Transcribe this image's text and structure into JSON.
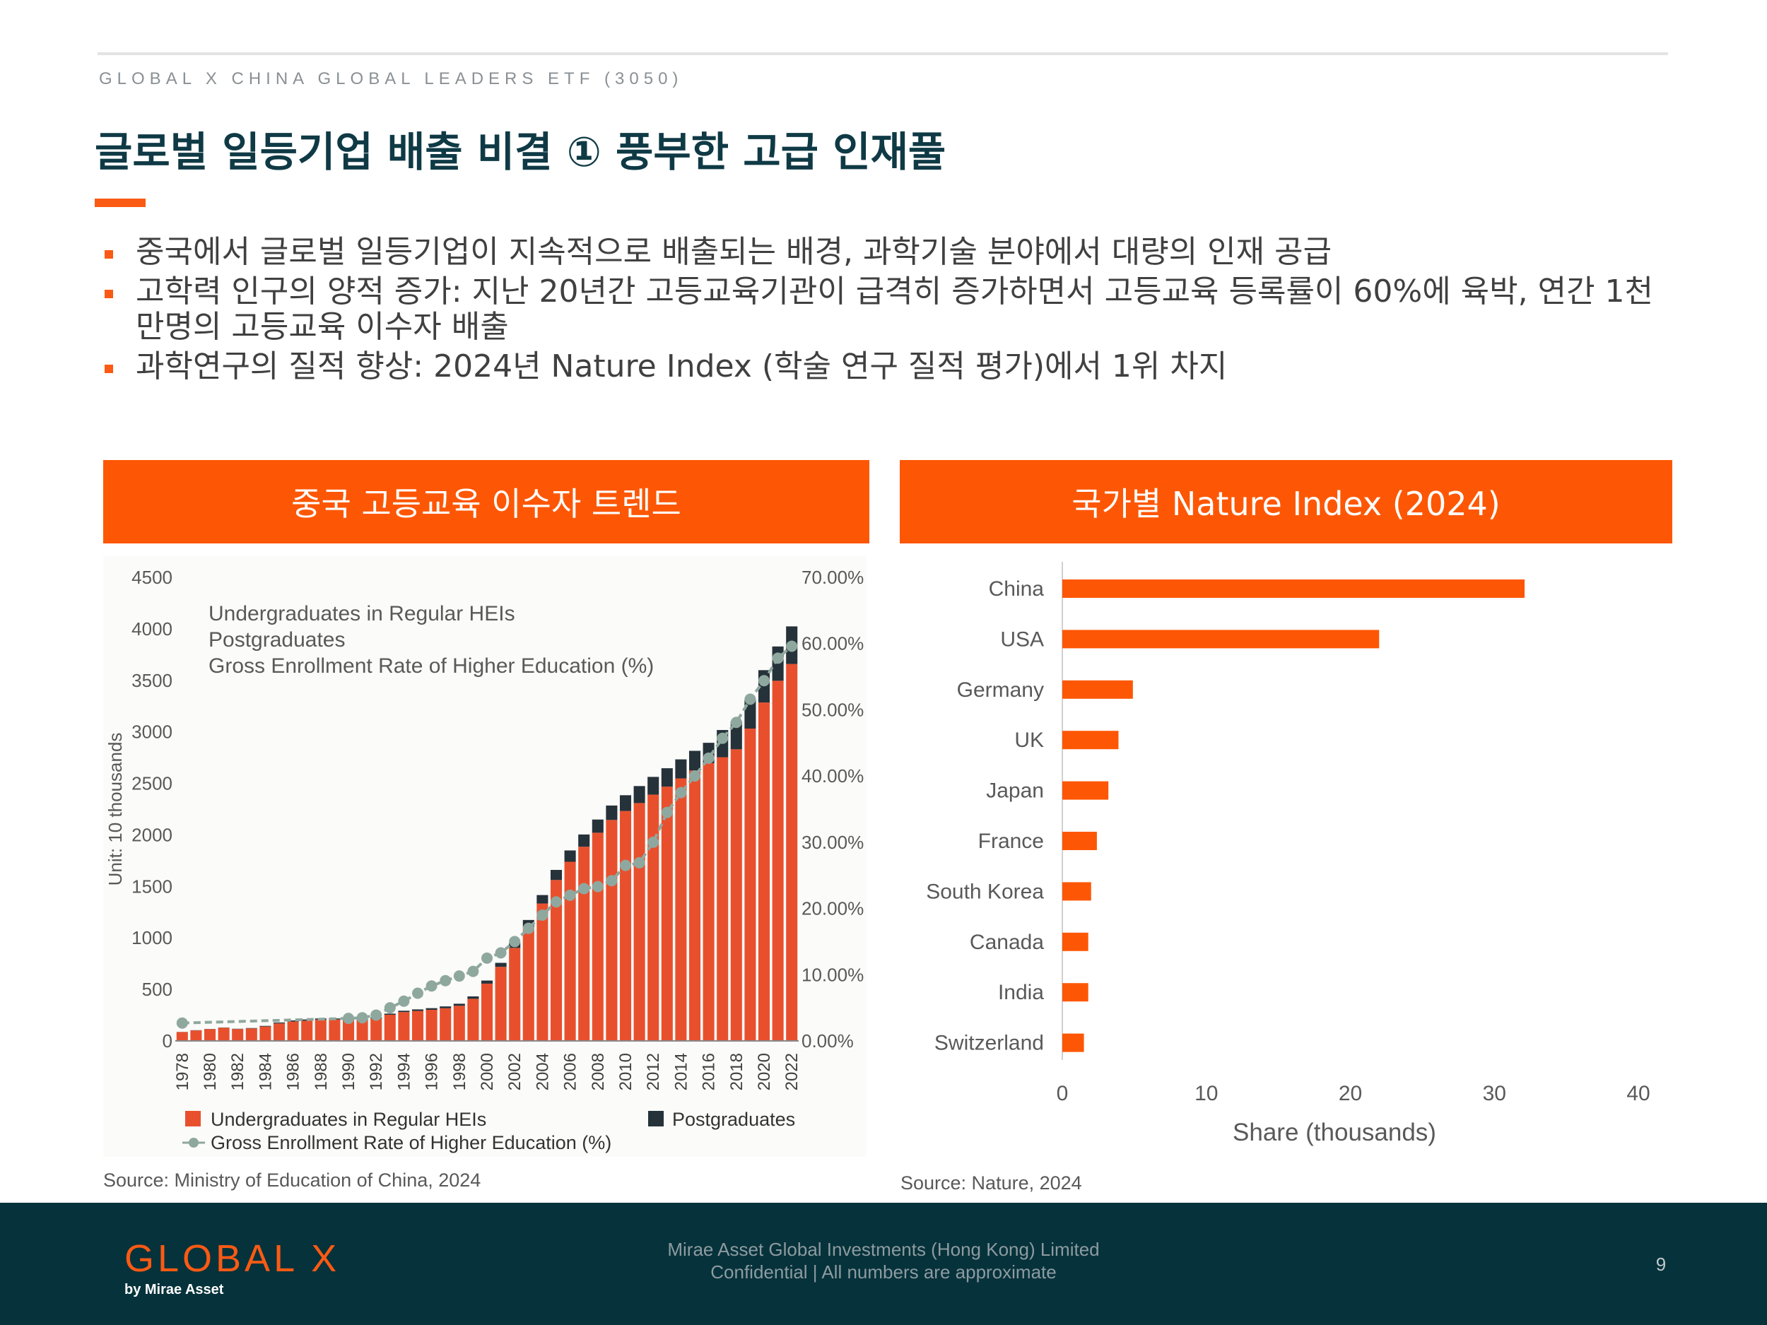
{
  "header": {
    "eyebrow": "GLOBAL X CHINA GLOBAL LEADERS ETF (3050)",
    "title": "글로벌 일등기업 배출 비결 ① 풍부한 고급 인재풀"
  },
  "bullets": [
    "중국에서 글로벌 일등기업이 지속적으로 배출되는 배경, 과학기술 분야에서 대량의 인재 공급",
    "고학력 인구의 양적 증가: 지난 20년간 고등교육기관이 급격히 증가하면서 고등교육 등록률이 60%에 육박, 연간 1천만명의 고등교육 이수자 배출",
    "과학연구의 질적 향상: 2024년 Nature Index (학술 연구 질적 평가)에서 1위 차지"
  ],
  "left_panel": {
    "heading": "중국 고등교육 이수자 트렌드",
    "source": "Source: Ministry of Education of China, 2024"
  },
  "right_panel": {
    "heading": "국가별 Nature Index (2024)",
    "source": "Source: Nature, 2024"
  },
  "footer": {
    "logo": "GLOBAL X",
    "logo_sub": "by Mirae Asset",
    "line1": "Mirae Asset Global Investments (Hong Kong) Limited",
    "line2": "Confidential | All numbers are approximate",
    "page": "9"
  },
  "colors": {
    "accent": "#fa5a14",
    "header_bar": "#fd5705",
    "undergrad": "#e8502d",
    "postgrad": "#26323a",
    "rate_line": "#8fa89f",
    "footer_bg": "#06323b",
    "title": "#0f3a45"
  },
  "chart_data": [
    {
      "type": "bar",
      "stacked": true,
      "secondary_line": true,
      "ylabel": "Unit: 10 thousands",
      "ylim": [
        0,
        4500
      ],
      "yticks": [
        "0",
        "500",
        "1000",
        "1500",
        "2000",
        "2500",
        "3000",
        "3500",
        "4000",
        "4500"
      ],
      "y2lim": [
        0,
        70
      ],
      "y2ticks": [
        "0.00%",
        "10.00%",
        "20.00%",
        "30.00%",
        "40.00%",
        "50.00%",
        "60.00%",
        "70.00%"
      ],
      "xticks": [
        "1978",
        "1980",
        "1982",
        "1984",
        "1986",
        "1988",
        "1990",
        "1992",
        "1994",
        "1996",
        "1998",
        "2000",
        "2002",
        "2004",
        "2006",
        "2008",
        "2010",
        "2012",
        "2014",
        "2016",
        "2018",
        "2020",
        "2022"
      ],
      "x": [
        1978,
        1979,
        1980,
        1981,
        1982,
        1983,
        1984,
        1985,
        1986,
        1987,
        1988,
        1989,
        1990,
        1991,
        1992,
        1993,
        1994,
        1995,
        1996,
        1997,
        1998,
        1999,
        2000,
        2001,
        2002,
        2003,
        2004,
        2005,
        2006,
        2007,
        2008,
        2009,
        2010,
        2011,
        2012,
        2013,
        2014,
        2015,
        2016,
        2017,
        2018,
        2019,
        2020,
        2021,
        2022
      ],
      "legend_labels": [
        "Undergraduates in Regular HEIs",
        "Postgraduates",
        "Gross Enrollment Rate of Higher Education (%)"
      ],
      "legend_placement": "top-left and bottom",
      "series": [
        {
          "name": "Undergraduates in Regular HEIs",
          "type": "bar",
          "values": [
            86,
            102,
            114,
            128,
            115,
            121,
            140,
            170,
            188,
            196,
            207,
            208,
            206,
            204,
            218,
            254,
            280,
            291,
            302,
            317,
            341,
            409,
            556,
            719,
            903,
            1109,
            1334,
            1562,
            1739,
            1885,
            2021,
            2145,
            2232,
            2309,
            2391,
            2468,
            2548,
            2625,
            2696,
            2754,
            2831,
            3032,
            3285,
            3496,
            3659
          ]
        },
        {
          "name": "Postgraduates",
          "type": "bar",
          "values": [
            1,
            2,
            2,
            2,
            3,
            4,
            6,
            9,
            11,
            12,
            11,
            10,
            9,
            9,
            9,
            11,
            13,
            15,
            16,
            18,
            20,
            23,
            30,
            39,
            50,
            65,
            82,
            98,
            110,
            119,
            128,
            140,
            153,
            165,
            172,
            179,
            185,
            191,
            198,
            264,
            273,
            286,
            314,
            333,
            365
          ]
        },
        {
          "name": "Gross Enrollment Rate of Higher Education (%)",
          "type": "line",
          "values": [
            2.7,
            null,
            null,
            null,
            null,
            null,
            null,
            null,
            null,
            null,
            null,
            null,
            3.4,
            3.5,
            3.9,
            5.0,
            6.0,
            7.2,
            8.3,
            9.1,
            9.8,
            10.5,
            12.5,
            13.3,
            15.0,
            17.0,
            19.0,
            21.0,
            22.0,
            23.0,
            23.3,
            24.2,
            26.5,
            26.9,
            30.0,
            34.5,
            37.5,
            40.0,
            42.7,
            45.7,
            48.1,
            51.6,
            54.4,
            57.8,
            59.6
          ]
        }
      ]
    },
    {
      "type": "bar",
      "orientation": "horizontal",
      "xlabel": "Share (thousands)",
      "xlim": [
        0,
        40
      ],
      "xticks": [
        "0",
        "10",
        "20",
        "30",
        "40"
      ],
      "categories": [
        "China",
        "USA",
        "Germany",
        "UK",
        "Japan",
        "France",
        "South Korea",
        "Canada",
        "India",
        "Switzerland"
      ],
      "values": [
        32.1,
        22.0,
        4.9,
        3.9,
        3.2,
        2.4,
        2.0,
        1.8,
        1.8,
        1.5
      ]
    }
  ]
}
